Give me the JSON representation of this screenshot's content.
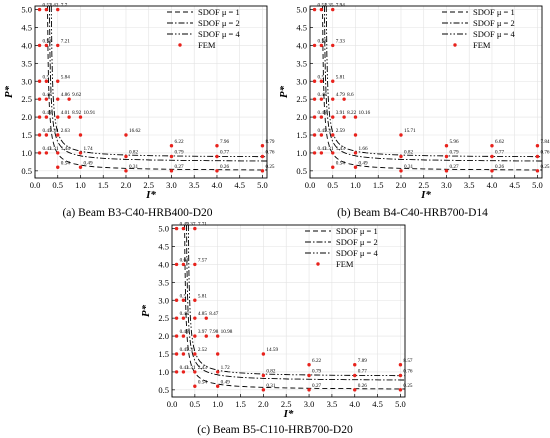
{
  "legend": {
    "sdof1": "SDOF μ = 1",
    "sdof2": "SDOF μ = 2",
    "sdof4": "SDOF μ = 4",
    "fem": "FEM"
  },
  "chart_data": [
    {
      "type": "scatter",
      "caption": "(a) Beam B3-C40-HRB400-D20",
      "xlabel": "I*",
      "ylabel": "P*",
      "xlim": [
        0,
        5.1
      ],
      "ylim": [
        0.3,
        5.1
      ],
      "xticks": [
        0.0,
        0.5,
        1.0,
        1.5,
        2.0,
        2.5,
        3.0,
        3.5,
        4.0,
        4.5,
        5.0
      ],
      "yticks": [
        0.5,
        1.0,
        1.5,
        2.0,
        2.5,
        3.0,
        3.5,
        4.0,
        4.5,
        5.0
      ],
      "grid": true,
      "legend_position": "top-right",
      "series": [
        {
          "name": "SDOF μ = 1",
          "style": "dashed",
          "asymptote_x": 0.25,
          "asymptote_y": 0.5
        },
        {
          "name": "SDOF μ = 2",
          "style": "dash-dot",
          "asymptote_x": 0.29,
          "asymptote_y": 0.75
        },
        {
          "name": "SDOF μ = 4",
          "style": "dash-dot-dot",
          "asymptote_x": 0.33,
          "asymptote_y": 0.87
        }
      ],
      "fem_points": [
        {
          "x": 0.1,
          "y": 5.0,
          "label": "0.53"
        },
        {
          "x": 0.25,
          "y": 5.0,
          "label": "2.42"
        },
        {
          "x": 0.5,
          "y": 5.0,
          "label": "7.7"
        },
        {
          "x": 0.1,
          "y": 4.0,
          "label": "0.53"
        },
        {
          "x": 0.25,
          "y": 4.0,
          "label": ""
        },
        {
          "x": 0.5,
          "y": 4.0,
          "label": "7.21"
        },
        {
          "x": 0.1,
          "y": 3.0,
          "label": "0.5"
        },
        {
          "x": 0.25,
          "y": 3.0,
          "label": ""
        },
        {
          "x": 0.5,
          "y": 3.0,
          "label": "5.84"
        },
        {
          "x": 0.1,
          "y": 2.5,
          "label": "0.48"
        },
        {
          "x": 0.25,
          "y": 2.5,
          "label": ""
        },
        {
          "x": 0.5,
          "y": 2.5,
          "label": "4.86"
        },
        {
          "x": 0.75,
          "y": 2.5,
          "label": "9.62"
        },
        {
          "x": 0.1,
          "y": 2.0,
          "label": "0.48"
        },
        {
          "x": 0.25,
          "y": 2.0,
          "label": ""
        },
        {
          "x": 0.5,
          "y": 2.0,
          "label": "4.01"
        },
        {
          "x": 0.75,
          "y": 2.0,
          "label": "8.92"
        },
        {
          "x": 1.0,
          "y": 2.0,
          "label": "10.91"
        },
        {
          "x": 0.1,
          "y": 1.5,
          "label": "0.45"
        },
        {
          "x": 0.25,
          "y": 1.5,
          "label": "1.34"
        },
        {
          "x": 0.5,
          "y": 1.5,
          "label": "2.63"
        },
        {
          "x": 1.0,
          "y": 1.5,
          "label": ""
        },
        {
          "x": 2.0,
          "y": 1.5,
          "label": "16.62"
        },
        {
          "x": 0.1,
          "y": 1.0,
          "label": "0.43"
        },
        {
          "x": 0.25,
          "y": 1.0,
          "label": "1.31"
        },
        {
          "x": 0.5,
          "y": 1.0,
          "label": "1.44"
        },
        {
          "x": 1.0,
          "y": 1.0,
          "label": "1.74"
        },
        {
          "x": 3.0,
          "y": 1.2,
          "label": "6.22"
        },
        {
          "x": 4.0,
          "y": 1.2,
          "label": "7.96"
        },
        {
          "x": 5.0,
          "y": 1.2,
          "label": "8.79"
        },
        {
          "x": 2.0,
          "y": 0.9,
          "label": "0.82"
        },
        {
          "x": 3.0,
          "y": 0.9,
          "label": "0.79"
        },
        {
          "x": 4.0,
          "y": 0.9,
          "label": "0.77"
        },
        {
          "x": 5.0,
          "y": 0.9,
          "label": "0.76"
        },
        {
          "x": 0.5,
          "y": 0.6,
          "label": "0.54"
        },
        {
          "x": 1.0,
          "y": 0.6,
          "label": "0.49"
        },
        {
          "x": 2.0,
          "y": 0.5,
          "label": "0.31"
        },
        {
          "x": 3.0,
          "y": 0.5,
          "label": "0.27"
        },
        {
          "x": 4.0,
          "y": 0.5,
          "label": "0.26"
        },
        {
          "x": 5.0,
          "y": 0.5,
          "label": "0.25"
        }
      ]
    },
    {
      "type": "scatter",
      "caption": "(b) Beam B4-C40-HRB700-D14",
      "xlabel": "I*",
      "ylabel": "P*",
      "xlim": [
        0,
        5.1
      ],
      "ylim": [
        0.3,
        5.1
      ],
      "xticks": [
        0.0,
        0.5,
        1.0,
        1.5,
        2.0,
        2.5,
        3.0,
        3.5,
        4.0,
        4.5,
        5.0
      ],
      "yticks": [
        0.5,
        1.0,
        1.5,
        2.0,
        2.5,
        3.0,
        3.5,
        4.0,
        4.5,
        5.0
      ],
      "grid": true,
      "legend_position": "top-right",
      "series": [
        {
          "name": "SDOF μ = 1",
          "style": "dashed",
          "asymptote_x": 0.25,
          "asymptote_y": 0.5
        },
        {
          "name": "SDOF μ = 2",
          "style": "dash-dot",
          "asymptote_x": 0.29,
          "asymptote_y": 0.75
        },
        {
          "name": "SDOF μ = 4",
          "style": "dash-dot-dot",
          "asymptote_x": 0.33,
          "asymptote_y": 0.87
        }
      ],
      "fem_points": [
        {
          "x": 0.1,
          "y": 5.0,
          "label": "0.54"
        },
        {
          "x": 0.25,
          "y": 5.0,
          "label": "2.35"
        },
        {
          "x": 0.5,
          "y": 5.0,
          "label": "7.94"
        },
        {
          "x": 0.1,
          "y": 4.0,
          "label": "0.53"
        },
        {
          "x": 0.25,
          "y": 4.0,
          "label": ""
        },
        {
          "x": 0.5,
          "y": 4.0,
          "label": "7.33"
        },
        {
          "x": 0.1,
          "y": 3.0,
          "label": "0.5"
        },
        {
          "x": 0.25,
          "y": 3.0,
          "label": ""
        },
        {
          "x": 0.5,
          "y": 3.0,
          "label": "5.81"
        },
        {
          "x": 0.1,
          "y": 2.5,
          "label": "0.48"
        },
        {
          "x": 0.25,
          "y": 2.5,
          "label": ""
        },
        {
          "x": 0.5,
          "y": 2.5,
          "label": "4.79"
        },
        {
          "x": 0.75,
          "y": 2.5,
          "label": "8.6"
        },
        {
          "x": 0.1,
          "y": 2.0,
          "label": "0.48"
        },
        {
          "x": 0.25,
          "y": 2.0,
          "label": ""
        },
        {
          "x": 0.5,
          "y": 2.0,
          "label": "3.91"
        },
        {
          "x": 0.75,
          "y": 2.0,
          "label": "8.22"
        },
        {
          "x": 1.0,
          "y": 2.0,
          "label": "10.16"
        },
        {
          "x": 0.1,
          "y": 1.5,
          "label": "0.45"
        },
        {
          "x": 0.25,
          "y": 1.5,
          "label": "1.31"
        },
        {
          "x": 0.5,
          "y": 1.5,
          "label": "2.59"
        },
        {
          "x": 1.0,
          "y": 1.5,
          "label": ""
        },
        {
          "x": 2.0,
          "y": 1.5,
          "label": "15.71"
        },
        {
          "x": 0.1,
          "y": 1.0,
          "label": "0.43"
        },
        {
          "x": 0.25,
          "y": 1.0,
          "label": "1.31"
        },
        {
          "x": 0.5,
          "y": 1.0,
          "label": "1.43"
        },
        {
          "x": 1.0,
          "y": 1.0,
          "label": "1.66"
        },
        {
          "x": 3.0,
          "y": 1.2,
          "label": "5.96"
        },
        {
          "x": 4.0,
          "y": 1.2,
          "label": "6.62"
        },
        {
          "x": 5.0,
          "y": 1.2,
          "label": "7.84"
        },
        {
          "x": 2.0,
          "y": 0.9,
          "label": "0.82"
        },
        {
          "x": 3.0,
          "y": 0.9,
          "label": "0.79"
        },
        {
          "x": 4.0,
          "y": 0.9,
          "label": "0.77"
        },
        {
          "x": 5.0,
          "y": 0.9,
          "label": "0.76"
        },
        {
          "x": 0.5,
          "y": 0.6,
          "label": "0.54"
        },
        {
          "x": 1.0,
          "y": 0.6,
          "label": "0.49"
        },
        {
          "x": 2.0,
          "y": 0.5,
          "label": "0.31"
        },
        {
          "x": 3.0,
          "y": 0.5,
          "label": "0.27"
        },
        {
          "x": 4.0,
          "y": 0.5,
          "label": "0.26"
        },
        {
          "x": 5.0,
          "y": 0.5,
          "label": "0.25"
        }
      ]
    },
    {
      "type": "scatter",
      "caption": "(c) Beam B5-C110-HRB700-D20",
      "xlabel": "I*",
      "ylabel": "P*",
      "xlim": [
        0,
        5.1
      ],
      "ylim": [
        0.3,
        5.1
      ],
      "xticks": [
        0.0,
        0.5,
        1.0,
        1.5,
        2.0,
        2.5,
        3.0,
        3.5,
        4.0,
        4.5,
        5.0
      ],
      "yticks": [
        0.5,
        1.0,
        1.5,
        2.0,
        2.5,
        3.0,
        3.5,
        4.0,
        4.5,
        5.0
      ],
      "grid": true,
      "legend_position": "top-right",
      "series": [
        {
          "name": "SDOF μ = 1",
          "style": "dashed",
          "asymptote_x": 0.25,
          "asymptote_y": 0.5
        },
        {
          "name": "SDOF μ = 2",
          "style": "dash-dot",
          "asymptote_x": 0.29,
          "asymptote_y": 0.75
        },
        {
          "name": "SDOF μ = 4",
          "style": "dash-dot-dot",
          "asymptote_x": 0.33,
          "asymptote_y": 0.87
        }
      ],
      "fem_points": [
        {
          "x": 0.1,
          "y": 5.0,
          "label": "0.49"
        },
        {
          "x": 0.25,
          "y": 5.0,
          "label": "2.37"
        },
        {
          "x": 0.5,
          "y": 5.0,
          "label": "7.71"
        },
        {
          "x": 0.1,
          "y": 4.0,
          "label": "0.61"
        },
        {
          "x": 0.25,
          "y": 4.0,
          "label": ""
        },
        {
          "x": 0.5,
          "y": 4.0,
          "label": "7.57"
        },
        {
          "x": 0.1,
          "y": 3.0,
          "label": "0.5"
        },
        {
          "x": 0.25,
          "y": 3.0,
          "label": ""
        },
        {
          "x": 0.5,
          "y": 3.0,
          "label": "5.81"
        },
        {
          "x": 0.1,
          "y": 2.5,
          "label": "0.48"
        },
        {
          "x": 0.25,
          "y": 2.5,
          "label": ""
        },
        {
          "x": 0.5,
          "y": 2.5,
          "label": "4.85"
        },
        {
          "x": 0.75,
          "y": 2.5,
          "label": "8.47"
        },
        {
          "x": 0.1,
          "y": 2.0,
          "label": "0.48"
        },
        {
          "x": 0.25,
          "y": 2.0,
          "label": ""
        },
        {
          "x": 0.5,
          "y": 2.0,
          "label": "3.97"
        },
        {
          "x": 0.75,
          "y": 2.0,
          "label": "7.98"
        },
        {
          "x": 1.0,
          "y": 2.0,
          "label": "10.98"
        },
        {
          "x": 0.1,
          "y": 1.5,
          "label": "0.45"
        },
        {
          "x": 0.25,
          "y": 1.5,
          "label": "1.31"
        },
        {
          "x": 0.5,
          "y": 1.5,
          "label": "2.52"
        },
        {
          "x": 1.0,
          "y": 1.5,
          "label": ""
        },
        {
          "x": 2.0,
          "y": 1.5,
          "label": "14.59"
        },
        {
          "x": 0.1,
          "y": 1.0,
          "label": "0.43"
        },
        {
          "x": 0.25,
          "y": 1.0,
          "label": "1.31"
        },
        {
          "x": 0.5,
          "y": 1.0,
          "label": "2.43"
        },
        {
          "x": 1.0,
          "y": 1.0,
          "label": "1.72"
        },
        {
          "x": 3.0,
          "y": 1.2,
          "label": "6.22"
        },
        {
          "x": 4.0,
          "y": 1.2,
          "label": "7.89"
        },
        {
          "x": 5.0,
          "y": 1.2,
          "label": "8.57"
        },
        {
          "x": 2.0,
          "y": 0.9,
          "label": "0.82"
        },
        {
          "x": 3.0,
          "y": 0.9,
          "label": "0.79"
        },
        {
          "x": 4.0,
          "y": 0.9,
          "label": "0.77"
        },
        {
          "x": 5.0,
          "y": 0.9,
          "label": "0.76"
        },
        {
          "x": 0.5,
          "y": 0.6,
          "label": "0.54"
        },
        {
          "x": 1.0,
          "y": 0.6,
          "label": "0.49"
        },
        {
          "x": 2.0,
          "y": 0.5,
          "label": "0.31"
        },
        {
          "x": 3.0,
          "y": 0.5,
          "label": "0.27"
        },
        {
          "x": 4.0,
          "y": 0.5,
          "label": "0.26"
        },
        {
          "x": 5.0,
          "y": 0.5,
          "label": "0.25"
        }
      ]
    }
  ]
}
